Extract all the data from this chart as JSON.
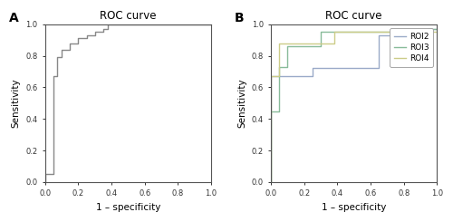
{
  "title": "ROC curve",
  "xlabel": "1 – specificity",
  "ylabel": "Sensitivity",
  "label_A": "A",
  "label_B": "B",
  "roc_A_x": [
    0.0,
    0.0,
    0.05,
    0.05,
    0.07,
    0.07,
    0.1,
    0.1,
    0.15,
    0.15,
    0.2,
    0.2,
    0.25,
    0.25,
    0.3,
    0.3,
    0.35,
    0.35,
    0.38,
    0.38,
    1.0
  ],
  "roc_A_y": [
    0.0,
    0.05,
    0.05,
    0.67,
    0.67,
    0.79,
    0.79,
    0.84,
    0.84,
    0.88,
    0.88,
    0.91,
    0.91,
    0.93,
    0.93,
    0.95,
    0.95,
    0.97,
    0.97,
    1.0,
    1.0
  ],
  "roc_A_color": "#888888",
  "roi2_x": [
    0.0,
    0.0,
    0.25,
    0.25,
    0.65,
    0.65,
    0.95,
    0.95,
    1.0
  ],
  "roi2_y": [
    0.0,
    0.67,
    0.67,
    0.72,
    0.72,
    0.93,
    0.93,
    0.97,
    0.97
  ],
  "roi2_color": "#9aaac8",
  "roi3_x": [
    0.0,
    0.0,
    0.05,
    0.05,
    0.1,
    0.1,
    0.3,
    0.3,
    0.65,
    0.65,
    0.95,
    0.95,
    1.0
  ],
  "roi3_y": [
    0.0,
    0.45,
    0.45,
    0.73,
    0.73,
    0.86,
    0.86,
    0.95,
    0.95,
    0.95,
    0.95,
    0.97,
    0.97
  ],
  "roi3_color": "#88bb99",
  "roi4_x": [
    0.0,
    0.0,
    0.05,
    0.05,
    0.38,
    0.38,
    1.0
  ],
  "roi4_y": [
    0.0,
    0.67,
    0.67,
    0.88,
    0.88,
    0.95,
    0.95
  ],
  "roi4_color": "#cccc88",
  "xlim": [
    0.0,
    1.0
  ],
  "ylim": [
    0.0,
    1.0
  ],
  "xticks": [
    0.0,
    0.2,
    0.4,
    0.6,
    0.8,
    1.0
  ],
  "yticks": [
    0.0,
    0.2,
    0.4,
    0.6,
    0.8,
    1.0
  ],
  "background_color": "#ffffff",
  "legend_labels": [
    "ROI2",
    "ROI3",
    "ROI4"
  ]
}
